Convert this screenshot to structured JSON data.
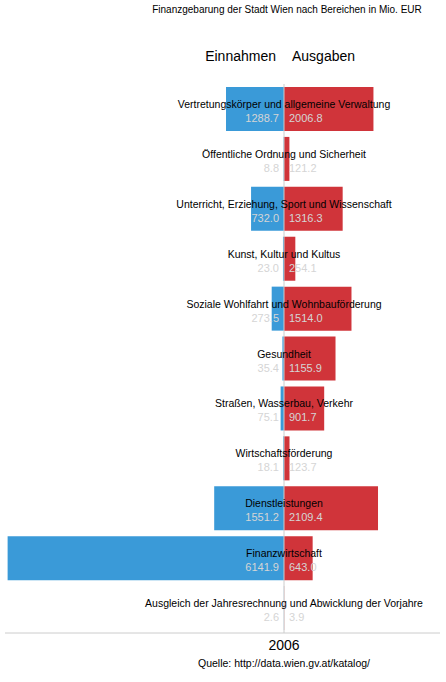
{
  "chart_data": {
    "type": "bar",
    "orientation": "horizontal",
    "title": "Finanzgebarung der Stadt Wien nach Bereichen in Mio. EUR",
    "xlabel": "2006",
    "annotations": [
      "Quelle: http://data.wien.gv.at/katalog/"
    ],
    "categories": [
      "Vertretungskörper und allgemeine Verwaltung",
      "Öffentliche Ordnung und Sicherheit",
      "Unterricht, Erziehung, Sport und Wissenschaft",
      "Kunst, Kultur und Kultus",
      "Soziale Wohlfahrt und Wohnbauförderung",
      "Gesundheit",
      "Straßen, Wasserbau, Verkehr",
      "Wirtschaftsförderung",
      "Dienstleistungen",
      "Finanzwirtschaft",
      "Ausgleich der Jahresrechnung und Abwicklung der Vorjahre"
    ],
    "series": [
      {
        "name": "Einnahmen",
        "color": "#3a9ad8",
        "values": [
          1288.7,
          8.8,
          732.0,
          23.0,
          273.5,
          35.4,
          75.1,
          18.1,
          1551.2,
          6141.9,
          2.6
        ],
        "value_labels": [
          "1288.7",
          "8.8",
          "732.0",
          "23.0",
          "273.5",
          "35.4",
          "75.1",
          "18.1",
          "1551.2",
          "6141.9",
          "2.6"
        ],
        "xlim": [
          0,
          6200
        ]
      },
      {
        "name": "Ausgaben",
        "color": "#d0343a",
        "values": [
          2006.8,
          121.2,
          1316.3,
          254.1,
          1514.0,
          1155.9,
          901.7,
          123.7,
          2109.4,
          643.0,
          3.9
        ],
        "value_labels": [
          "2006.8",
          "121.2",
          "1316.3",
          "254.1",
          "1514.0",
          "1155.9",
          "901.7",
          "123.7",
          "2109.4",
          "643.0",
          "3.9"
        ],
        "xlim": [
          0,
          3500
        ]
      }
    ],
    "data_labels": true,
    "legend": "top",
    "tick_labels": "y",
    "grid": false
  }
}
